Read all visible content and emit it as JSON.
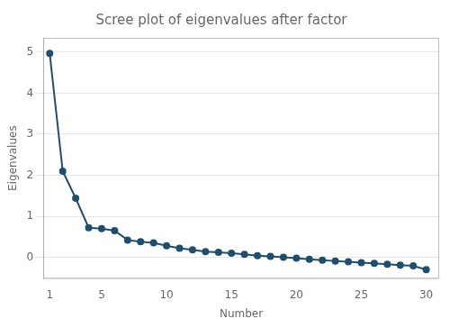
{
  "chart_data": {
    "type": "line",
    "title": "Scree plot of eigenvalues after factor",
    "xlabel": "Number",
    "ylabel": "Eigenvalues",
    "x": [
      1,
      2,
      3,
      4,
      5,
      6,
      7,
      8,
      9,
      10,
      11,
      12,
      13,
      14,
      15,
      16,
      17,
      18,
      19,
      20,
      21,
      22,
      23,
      24,
      25,
      26,
      27,
      28,
      29,
      30
    ],
    "values": [
      4.97,
      2.1,
      1.44,
      0.72,
      0.7,
      0.65,
      0.42,
      0.38,
      0.35,
      0.28,
      0.22,
      0.18,
      0.14,
      0.12,
      0.1,
      0.07,
      0.04,
      0.02,
      0.0,
      -0.02,
      -0.05,
      -0.07,
      -0.09,
      -0.11,
      -0.13,
      -0.15,
      -0.17,
      -0.19,
      -0.21,
      -0.3
    ],
    "color": "#1f4e6e",
    "marker": "circle",
    "xlim": [
      0.5,
      31
    ],
    "ylim": [
      -0.52,
      5.35
    ],
    "xticks": [
      1,
      5,
      10,
      15,
      20,
      25,
      30
    ],
    "yticks": [
      0,
      1,
      2,
      3,
      4,
      5
    ],
    "grid": "y"
  }
}
